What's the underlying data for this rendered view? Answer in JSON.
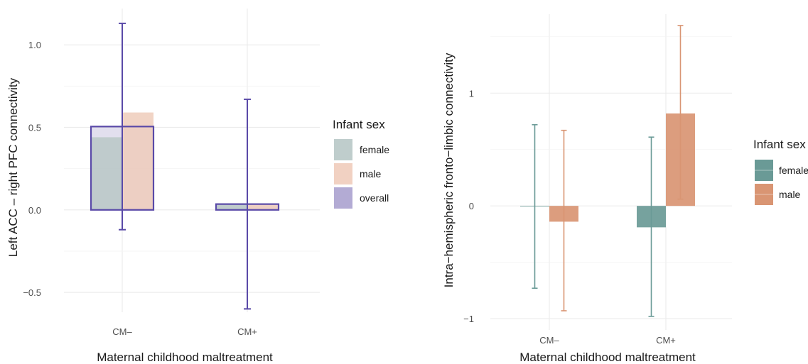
{
  "chart_data": [
    {
      "type": "bar",
      "xlabel": "Maternal childhood maltreatment",
      "ylabel": "Left ACC – right PFC connectivity",
      "categories": [
        "CM–",
        "CM+"
      ],
      "yticks": [
        {
          "value": -0.5,
          "label": "−0.5"
        },
        {
          "value": 0.0,
          "label": "0.0"
        },
        {
          "value": 0.5,
          "label": "0.5"
        },
        {
          "value": 1.0,
          "label": "1.0"
        }
      ],
      "ylim": [
        -0.62,
        1.22
      ],
      "grid": true,
      "legend": {
        "title": "Infant sex",
        "position": "right",
        "items": [
          {
            "label": "female",
            "color": "#b8c8c6"
          },
          {
            "label": "male",
            "color": "#efccbb"
          },
          {
            "label": "overall",
            "color": "#aba2cf"
          }
        ]
      },
      "series": [
        {
          "name": "female",
          "color": "#b8c8c6",
          "values": [
            0.44,
            0.04
          ]
        },
        {
          "name": "male",
          "color": "#efccbb",
          "values": [
            0.59,
            0.035
          ]
        },
        {
          "name": "overall",
          "color": "#5a4aa8",
          "values": [
            0.505,
            0.035
          ],
          "error_low": [
            -0.12,
            -0.6
          ],
          "error_high": [
            1.13,
            0.67
          ]
        }
      ]
    },
    {
      "type": "bar",
      "xlabel": "Maternal childhood maltreatment",
      "ylabel": "Intra−hemispheric fronto−limbic connectivity",
      "categories": [
        "CM–",
        "CM+"
      ],
      "yticks": [
        {
          "value": -1,
          "label": "−1"
        },
        {
          "value": 0,
          "label": "0"
        },
        {
          "value": 1,
          "label": "1"
        }
      ],
      "ylim": [
        -1.1,
        1.7
      ],
      "grid": true,
      "legend": {
        "title": "Infant sex",
        "position": "right",
        "items": [
          {
            "label": "female",
            "color": "#6a9a96"
          },
          {
            "label": "male",
            "color": "#d99573"
          }
        ]
      },
      "series": [
        {
          "name": "female",
          "color": "#6a9a96",
          "values": [
            0.0,
            -0.19
          ],
          "error_low": [
            -0.73,
            -0.98
          ],
          "error_high": [
            0.72,
            0.61
          ]
        },
        {
          "name": "male",
          "color": "#d99573",
          "values": [
            -0.14,
            0.82
          ],
          "error_low": [
            -0.93,
            0.06
          ],
          "error_high": [
            0.67,
            1.6
          ]
        }
      ]
    }
  ]
}
